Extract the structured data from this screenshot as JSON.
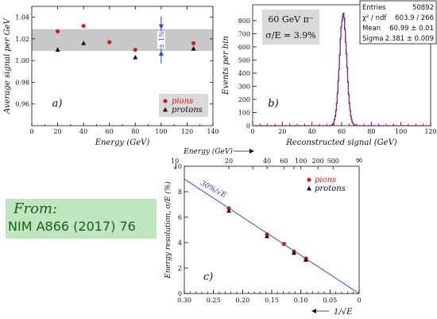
{
  "source_note": {
    "from": "From:",
    "reference": "NIM A866 (2017) 76"
  },
  "chart_data": [
    {
      "panel": "a)",
      "type": "scatter",
      "xlabel": "Energy (GeV)",
      "ylabel": "Average signal per GeV",
      "xlim": [
        0,
        140
      ],
      "ylim": [
        0.94,
        1.05
      ],
      "xticks": [
        0,
        20,
        40,
        60,
        80,
        100,
        120,
        140
      ],
      "xtick_labels": [
        "0",
        "20",
        "40",
        "60",
        "80",
        "100",
        "120",
        "140"
      ],
      "yticks": [
        0.96,
        0.98,
        1.0,
        1.02,
        1.04
      ],
      "ytick_labels": [
        "0.96",
        "0.98",
        "1.00",
        "1.02",
        "1.04"
      ],
      "band": [
        1.009,
        1.029
      ],
      "band_label": "± 1%",
      "band_color": "#c8c8c8",
      "series": [
        {
          "name": "pions",
          "marker": "circle",
          "color": "#cc2222",
          "x": [
            20,
            40,
            60,
            80,
            125
          ],
          "y": [
            1.027,
            1.032,
            1.017,
            1.01,
            1.016
          ]
        },
        {
          "name": "protons",
          "marker": "triangle",
          "color": "#111111",
          "x": [
            20,
            40,
            80,
            125
          ],
          "y": [
            1.01,
            1.016,
            1.003,
            1.011
          ]
        }
      ],
      "legend": "bottom-right",
      "grid": false
    },
    {
      "panel": "b)",
      "type": "line",
      "xlabel": "Reconstructed signal (GeV)",
      "ylabel": "Events per bin",
      "xlim": [
        0,
        120
      ],
      "ylim": [
        0,
        920
      ],
      "xticks": [
        0,
        20,
        40,
        60,
        80,
        100,
        120
      ],
      "xtick_labels": [
        "0",
        "20",
        "40",
        "60",
        "80",
        "100",
        "120"
      ],
      "yticks": [
        0,
        100,
        200,
        300,
        400,
        500,
        600,
        700,
        800
      ],
      "ytick_labels": [
        "0",
        "100",
        "200",
        "300",
        "400",
        "500",
        "600",
        "700",
        "800"
      ],
      "annotation_energy": "60 GeV π⁻",
      "annotation_resolution": "σ/E = 3.9%",
      "stats": [
        {
          "label": "Entries",
          "value": "50892"
        },
        {
          "label": "χ² / ndf",
          "value": "603.9 / 266"
        },
        {
          "label": "Mean",
          "value": "60.99 ± 0.01"
        },
        {
          "label": "Sigma",
          "value": "2.381 ± 0.009"
        }
      ],
      "histogram_color": "#1a2a99",
      "fit_color": "#dd2222",
      "gauss_mean": 60.99,
      "gauss_sigma": 2.381,
      "peak_events": 850,
      "grid": false
    },
    {
      "panel": "c)",
      "type": "scatter",
      "xlabel": "1/√E",
      "ylabel": "Energy resolution, σ/E (%)",
      "x_reversed": true,
      "xlim": [
        0.3,
        0
      ],
      "ylim": [
        0,
        10
      ],
      "xticks": [
        0.3,
        0.25,
        0.2,
        0.15,
        0.1,
        0.05,
        0
      ],
      "xtick_labels": [
        "0.30",
        "0.25",
        "0.20",
        "0.15",
        "0.10",
        "0.05",
        "0"
      ],
      "yticks": [
        0,
        2,
        4,
        6,
        8,
        10
      ],
      "ytick_labels": [
        "0",
        "2",
        "4",
        "6",
        "8",
        "10"
      ],
      "top_axis_label": "Energy (GeV)",
      "top_axis_energies": [
        10,
        20,
        30,
        40,
        60,
        80,
        100,
        200,
        500
      ],
      "top_axis_labels": [
        "10",
        "20",
        "",
        "40",
        "60",
        "",
        "100",
        "200",
        "500"
      ],
      "top_axis_infinity": "∞",
      "fit_label": "30%/√E",
      "fit_coefficient": 30,
      "fit_color": "#2244dd",
      "series": [
        {
          "name": "pions",
          "marker": "circle",
          "color": "#cc2222",
          "x": [
            0.2236,
            0.1581,
            0.1291,
            0.1118,
            0.0913
          ],
          "y": [
            6.7,
            4.65,
            3.9,
            3.3,
            2.75
          ]
        },
        {
          "name": "protons",
          "marker": "triangle",
          "color": "#111111",
          "x": [
            0.2236,
            0.1581,
            0.1118,
            0.0913
          ],
          "y": [
            6.5,
            4.5,
            3.2,
            2.65
          ]
        }
      ],
      "legend": "top-right",
      "grid": false
    }
  ]
}
